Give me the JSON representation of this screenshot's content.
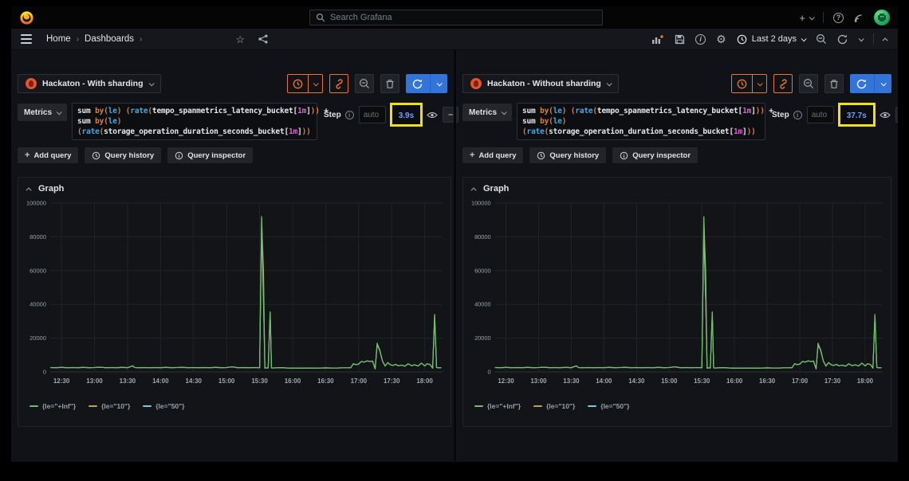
{
  "navbar": {
    "search_placeholder": "Search Grafana"
  },
  "breadcrumb": {
    "items": [
      "Home",
      "Dashboards"
    ]
  },
  "toolbar": {
    "time_range": "Last 2 days"
  },
  "icons": {
    "plus": "+",
    "minus": "–",
    "gear": "⚙",
    "star": "☆",
    "help": "?",
    "info": "i"
  },
  "query_actions": {
    "add_query": "Add query",
    "query_history": "Query history",
    "query_inspector": "Query inspector"
  },
  "query": {
    "mode_label": "Metrics",
    "step_label": "Step",
    "step_placeholder": "auto",
    "lines": [
      [
        {
          "t": "sum ",
          "c": "p"
        },
        {
          "t": "by",
          "c": "k"
        },
        {
          "t": "(",
          "c": "o"
        },
        {
          "t": "le",
          "c": "f"
        },
        {
          "t": ")",
          "c": "o"
        },
        {
          "t": " ",
          "c": "p"
        },
        {
          "t": "(",
          "c": "o"
        },
        {
          "t": "rate",
          "c": "f"
        },
        {
          "t": "(",
          "c": "o"
        },
        {
          "t": "tempo_spanmetrics_latency_bucket",
          "c": "p"
        },
        {
          "t": "[",
          "c": "b"
        },
        {
          "t": "1m",
          "c": "d"
        },
        {
          "t": "]",
          "c": "b"
        },
        {
          "t": ")",
          "c": "o"
        },
        {
          "t": ")",
          "c": "o"
        },
        {
          "t": " +",
          "c": "p"
        }
      ],
      [
        {
          "t": "sum ",
          "c": "p"
        },
        {
          "t": "by",
          "c": "k"
        },
        {
          "t": "(",
          "c": "o"
        },
        {
          "t": "le",
          "c": "f"
        },
        {
          "t": ")",
          "c": "o"
        }
      ],
      [
        {
          "t": "(",
          "c": "o"
        },
        {
          "t": "rate",
          "c": "f"
        },
        {
          "t": "(",
          "c": "o"
        },
        {
          "t": "storage_operation_duration_seconds_bucket",
          "c": "p"
        },
        {
          "t": "[",
          "c": "b"
        },
        {
          "t": "1m",
          "c": "d"
        },
        {
          "t": "]",
          "c": "b"
        },
        {
          "t": ")",
          "c": "o"
        },
        {
          "t": ")",
          "c": "o"
        }
      ]
    ]
  },
  "panes": [
    {
      "title": "Hackaton - With sharding",
      "step_value": "3.9s",
      "graph_label": "Graph"
    },
    {
      "title": "Hackaton - Without sharding",
      "step_value": "37.7s",
      "graph_label": "Graph"
    }
  ],
  "chart_data": {
    "type": "line",
    "title": "Graph",
    "note": "Same series shown in both split panes",
    "xlim": [
      12.33,
      18.27
    ],
    "ylim": [
      0,
      100000
    ],
    "x_ticks": [
      "12:30",
      "13:00",
      "13:30",
      "14:00",
      "14:30",
      "15:00",
      "15:30",
      "16:00",
      "16:30",
      "17:00",
      "17:30",
      "18:00"
    ],
    "x_tick_hours": [
      12.5,
      13,
      13.5,
      14,
      14.5,
      15,
      15.5,
      16,
      16.5,
      17,
      17.5,
      18
    ],
    "y_ticks": [
      0,
      20000,
      40000,
      60000,
      80000,
      100000
    ],
    "x_hours": [
      12.33,
      12.42,
      12.5,
      12.58,
      12.67,
      12.75,
      12.83,
      12.92,
      13.0,
      13.08,
      13.17,
      13.25,
      13.33,
      13.42,
      13.5,
      13.58,
      13.61,
      13.67,
      13.75,
      13.83,
      13.92,
      14.0,
      14.08,
      14.17,
      14.25,
      14.33,
      14.42,
      14.5,
      14.58,
      14.67,
      14.75,
      14.83,
      14.92,
      15.0,
      15.08,
      15.17,
      15.25,
      15.33,
      15.42,
      15.5,
      15.53,
      15.56,
      15.58,
      15.6,
      15.63,
      15.66,
      15.68,
      15.7,
      15.75,
      15.83,
      15.92,
      16.0,
      16.08,
      16.17,
      16.25,
      16.33,
      16.42,
      16.5,
      16.58,
      16.67,
      16.75,
      16.83,
      16.88,
      16.92,
      16.96,
      17.0,
      17.04,
      17.08,
      17.13,
      17.17,
      17.21,
      17.25,
      17.28,
      17.32,
      17.36,
      17.4,
      17.44,
      17.48,
      17.52,
      17.56,
      17.6,
      17.65,
      17.7,
      17.75,
      17.8,
      17.85,
      17.9,
      17.95,
      18.0,
      18.04,
      18.08,
      18.12,
      18.15,
      18.18,
      18.22,
      18.25
    ],
    "series": [
      {
        "name": "{le=\"+Inf\"}",
        "color": "#73bf69",
        "values": [
          2600,
          2500,
          2700,
          2500,
          2600,
          2500,
          2700,
          2500,
          2600,
          2800,
          2500,
          2600,
          2500,
          2700,
          2500,
          3600,
          2600,
          2500,
          2600,
          2500,
          2600,
          2500,
          2700,
          2500,
          2600,
          2700,
          2500,
          2600,
          2500,
          2600,
          2500,
          2700,
          2500,
          2600,
          3000,
          2500,
          2600,
          2500,
          2600,
          2500,
          92000,
          44000,
          2200,
          2400,
          2300,
          35500,
          2400,
          2300,
          2400,
          2500,
          2300,
          2200,
          2300,
          2200,
          2300,
          2200,
          2300,
          2400,
          2300,
          2300,
          2400,
          2400,
          2500,
          4800,
          4300,
          4600,
          6200,
          5800,
          6500,
          6200,
          6400,
          1800,
          17000,
          12500,
          6500,
          3500,
          5500,
          4200,
          3800,
          4500,
          3600,
          4000,
          3400,
          4800,
          3700,
          4200,
          3500,
          5200,
          3600,
          4800,
          4400,
          2200,
          34000,
          2600,
          2400,
          2500
        ]
      },
      {
        "name": "{le=\"10\"}",
        "color": "#c2a23c",
        "values": [
          2600,
          2500,
          2700,
          2500,
          2600,
          2500,
          2700,
          2500,
          2600,
          2800,
          2500,
          2600,
          2500,
          2700,
          2500,
          3600,
          2600,
          2500,
          2600,
          2500,
          2600,
          2500,
          2700,
          2500,
          2600,
          2700,
          2500,
          2600,
          2500,
          2600,
          2500,
          2700,
          2500,
          2600,
          3000,
          2500,
          2600,
          2500,
          2600,
          2500,
          91000,
          60000,
          2200,
          2400,
          2300,
          35000,
          2400,
          2300,
          2400,
          2500,
          2300,
          2200,
          2300,
          2200,
          2300,
          2200,
          2300,
          2400,
          2300,
          2300,
          2400,
          2400,
          2500,
          4800,
          4300,
          4600,
          6200,
          5800,
          6500,
          6200,
          6400,
          1800,
          16500,
          13200,
          6500,
          3500,
          5500,
          4200,
          3800,
          4500,
          3600,
          4000,
          3400,
          4800,
          3700,
          4200,
          3500,
          5200,
          3600,
          4800,
          4400,
          2200,
          33500,
          2600,
          2400,
          2500
        ]
      },
      {
        "name": "{le=\"50\"}",
        "color": "#6ed0e0",
        "values": [
          2600,
          2500,
          2700,
          2500,
          2600,
          2500,
          2700,
          2500,
          2600,
          2800,
          2500,
          2600,
          2500,
          2700,
          2500,
          3600,
          2600,
          2500,
          2600,
          2500,
          2600,
          2500,
          2700,
          2500,
          2600,
          2700,
          2500,
          2600,
          2500,
          2600,
          2500,
          2700,
          2500,
          2600,
          3000,
          2500,
          2600,
          2500,
          2600,
          2500,
          83000,
          40000,
          2200,
          2400,
          2300,
          34800,
          2400,
          2300,
          2400,
          2500,
          2300,
          2200,
          2300,
          2200,
          2300,
          2200,
          2300,
          2400,
          2300,
          2300,
          2400,
          2400,
          2500,
          4800,
          4300,
          4600,
          6200,
          5800,
          6500,
          6200,
          6400,
          1800,
          15800,
          12800,
          6500,
          3500,
          5500,
          4200,
          3800,
          4500,
          3600,
          4000,
          3400,
          4800,
          3700,
          4200,
          3500,
          5200,
          3600,
          4800,
          4400,
          2200,
          32800,
          2600,
          2400,
          2500
        ]
      }
    ],
    "legend_position": "bottom",
    "grid": true
  },
  "colors": {
    "accent_orange": "#e8762c",
    "accent_blue": "#3274d9",
    "highlight_yellow": "#f0e206",
    "step_value_blue": "#6e9fff",
    "prometheus_orange": "#e6522c"
  }
}
